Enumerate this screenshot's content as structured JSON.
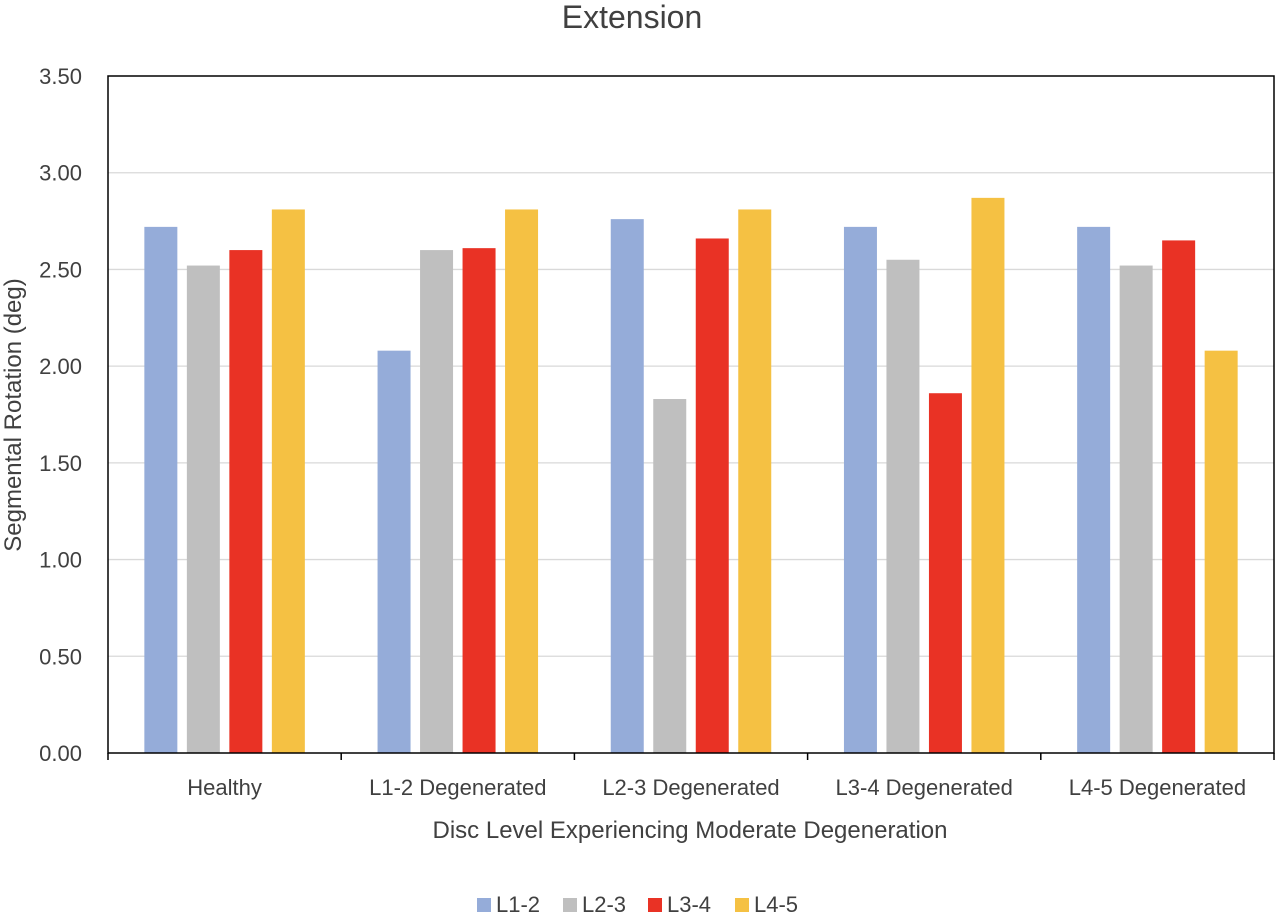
{
  "chart_data": {
    "type": "bar",
    "title": "Extension",
    "xlabel": "Disc Level Experiencing Moderate Degeneration",
    "ylabel": "Segmental Rotation (deg)",
    "ylim": [
      0,
      3.5
    ],
    "yticks": [
      "0.00",
      "0.50",
      "1.00",
      "1.50",
      "2.00",
      "2.50",
      "3.00",
      "3.50"
    ],
    "ytick_values": [
      0,
      0.5,
      1.0,
      1.5,
      2.0,
      2.5,
      3.0,
      3.5
    ],
    "grid": true,
    "legend_position": "bottom",
    "categories": [
      "Healthy",
      "L1-2 Degenerated",
      "L2-3 Degenerated",
      "L3-4 Degenerated",
      "L4-5 Degenerated"
    ],
    "series": [
      {
        "name": "L1-2",
        "color": "#95ACD9",
        "values": [
          2.72,
          2.08,
          2.76,
          2.72,
          2.72
        ]
      },
      {
        "name": "L2-3",
        "color": "#BFBFBF",
        "values": [
          2.52,
          2.6,
          1.83,
          2.55,
          2.52
        ]
      },
      {
        "name": "L3-4",
        "color": "#E93225",
        "values": [
          2.6,
          2.61,
          2.66,
          1.86,
          2.65
        ]
      },
      {
        "name": "L4-5",
        "color": "#F5C143",
        "values": [
          2.81,
          2.81,
          2.81,
          2.87,
          2.08
        ]
      }
    ]
  }
}
